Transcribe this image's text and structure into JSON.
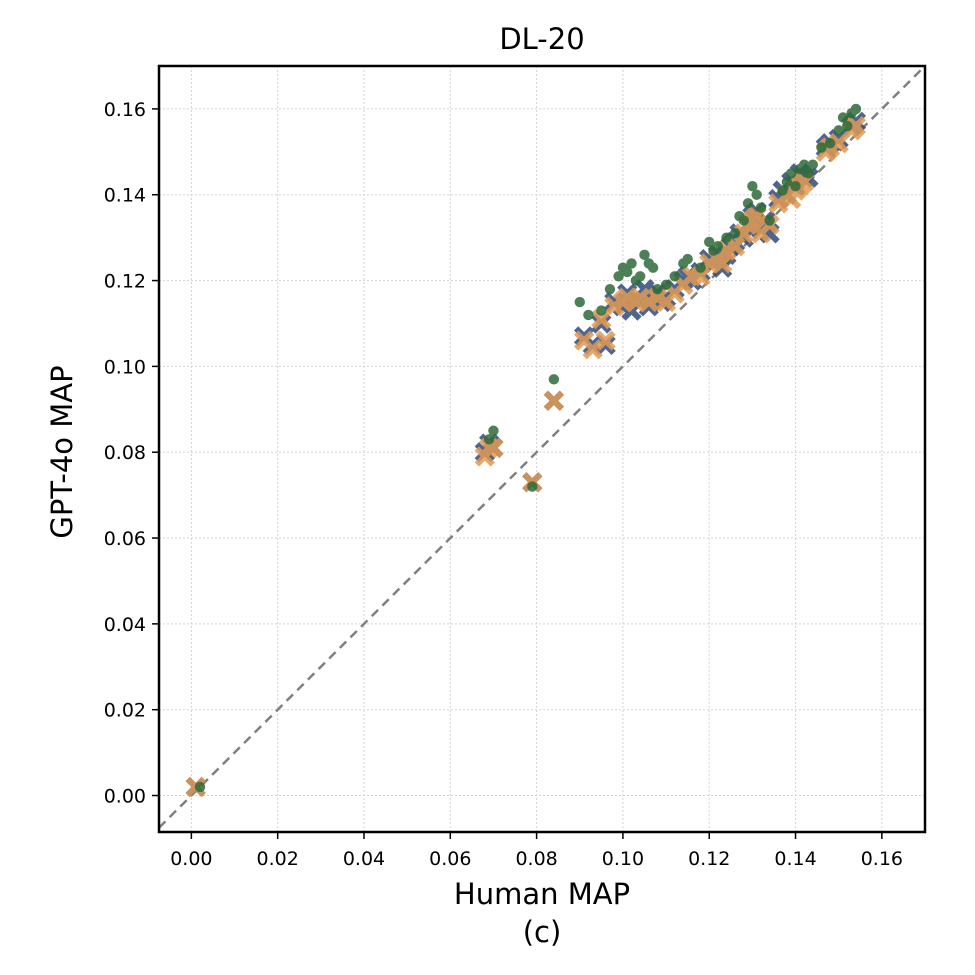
{
  "chart_data": {
    "type": "scatter",
    "title": "DL-20",
    "xlabel": "Human MAP",
    "ylabel": "GPT-4o MAP",
    "caption": "(c)",
    "xlim": [
      -0.0075,
      0.17
    ],
    "ylim": [
      -0.0085,
      0.17
    ],
    "xticks": [
      0.0,
      0.02,
      0.04,
      0.06,
      0.08,
      0.1,
      0.12,
      0.14,
      0.16
    ],
    "yticks": [
      0.0,
      0.02,
      0.04,
      0.06,
      0.08,
      0.1,
      0.12,
      0.14,
      0.16
    ],
    "tick_format_decimals": 2,
    "grid": true,
    "reference_line": {
      "type": "diagonal",
      "style": "dashed",
      "color": "#808080"
    },
    "series": [
      {
        "marker": "x-thick",
        "color": "#2f4b7c",
        "points": [
          [
            0.001,
            0.002
          ],
          [
            0.068,
            0.08
          ],
          [
            0.069,
            0.082
          ],
          [
            0.07,
            0.081
          ],
          [
            0.079,
            0.073
          ],
          [
            0.084,
            0.092
          ],
          [
            0.091,
            0.107
          ],
          [
            0.093,
            0.105
          ],
          [
            0.095,
            0.11
          ],
          [
            0.096,
            0.105
          ],
          [
            0.098,
            0.115
          ],
          [
            0.1,
            0.114
          ],
          [
            0.101,
            0.117
          ],
          [
            0.102,
            0.113
          ],
          [
            0.103,
            0.116
          ],
          [
            0.104,
            0.115
          ],
          [
            0.105,
            0.118
          ],
          [
            0.106,
            0.114
          ],
          [
            0.107,
            0.116
          ],
          [
            0.108,
            0.117
          ],
          [
            0.109,
            0.115
          ],
          [
            0.11,
            0.116
          ],
          [
            0.112,
            0.118
          ],
          [
            0.114,
            0.12
          ],
          [
            0.115,
            0.121
          ],
          [
            0.116,
            0.12
          ],
          [
            0.118,
            0.122
          ],
          [
            0.12,
            0.125
          ],
          [
            0.121,
            0.124
          ],
          [
            0.122,
            0.126
          ],
          [
            0.123,
            0.123
          ],
          [
            0.124,
            0.126
          ],
          [
            0.125,
            0.128
          ],
          [
            0.126,
            0.129
          ],
          [
            0.127,
            0.131
          ],
          [
            0.128,
            0.13
          ],
          [
            0.129,
            0.133
          ],
          [
            0.13,
            0.135
          ],
          [
            0.131,
            0.136
          ],
          [
            0.132,
            0.132
          ],
          [
            0.133,
            0.134
          ],
          [
            0.134,
            0.131
          ],
          [
            0.136,
            0.139
          ],
          [
            0.137,
            0.141
          ],
          [
            0.138,
            0.14
          ],
          [
            0.139,
            0.143
          ],
          [
            0.14,
            0.142
          ],
          [
            0.141,
            0.145
          ],
          [
            0.142,
            0.144
          ],
          [
            0.143,
            0.144
          ],
          [
            0.147,
            0.151
          ],
          [
            0.148,
            0.152
          ],
          [
            0.15,
            0.153
          ],
          [
            0.153,
            0.156
          ],
          [
            0.154,
            0.157
          ]
        ]
      },
      {
        "marker": "x-thick",
        "color": "#e29b52",
        "points": [
          [
            0.001,
            0.002
          ],
          [
            0.068,
            0.079
          ],
          [
            0.069,
            0.081
          ],
          [
            0.07,
            0.081
          ],
          [
            0.079,
            0.073
          ],
          [
            0.084,
            0.092
          ],
          [
            0.091,
            0.106
          ],
          [
            0.093,
            0.104
          ],
          [
            0.095,
            0.111
          ],
          [
            0.096,
            0.106
          ],
          [
            0.098,
            0.114
          ],
          [
            0.1,
            0.115
          ],
          [
            0.101,
            0.116
          ],
          [
            0.103,
            0.115
          ],
          [
            0.104,
            0.116
          ],
          [
            0.106,
            0.115
          ],
          [
            0.108,
            0.116
          ],
          [
            0.11,
            0.115
          ],
          [
            0.112,
            0.117
          ],
          [
            0.114,
            0.119
          ],
          [
            0.116,
            0.121
          ],
          [
            0.118,
            0.121
          ],
          [
            0.12,
            0.124
          ],
          [
            0.122,
            0.125
          ],
          [
            0.123,
            0.124
          ],
          [
            0.124,
            0.127
          ],
          [
            0.126,
            0.128
          ],
          [
            0.128,
            0.131
          ],
          [
            0.129,
            0.133
          ],
          [
            0.13,
            0.134
          ],
          [
            0.131,
            0.135
          ],
          [
            0.132,
            0.131
          ],
          [
            0.134,
            0.133
          ],
          [
            0.136,
            0.138
          ],
          [
            0.138,
            0.14
          ],
          [
            0.139,
            0.139
          ],
          [
            0.14,
            0.141
          ],
          [
            0.141,
            0.142
          ],
          [
            0.142,
            0.143
          ],
          [
            0.147,
            0.15
          ],
          [
            0.148,
            0.151
          ],
          [
            0.15,
            0.152
          ],
          [
            0.153,
            0.155
          ],
          [
            0.154,
            0.156
          ]
        ]
      },
      {
        "marker": "circle",
        "color": "#2e6b3a",
        "points": [
          [
            0.002,
            0.002
          ],
          [
            0.069,
            0.083
          ],
          [
            0.07,
            0.085
          ],
          [
            0.079,
            0.072
          ],
          [
            0.084,
            0.097
          ],
          [
            0.09,
            0.115
          ],
          [
            0.092,
            0.112
          ],
          [
            0.095,
            0.113
          ],
          [
            0.097,
            0.118
          ],
          [
            0.099,
            0.121
          ],
          [
            0.1,
            0.123
          ],
          [
            0.101,
            0.122
          ],
          [
            0.102,
            0.124
          ],
          [
            0.103,
            0.12
          ],
          [
            0.104,
            0.121
          ],
          [
            0.105,
            0.126
          ],
          [
            0.106,
            0.124
          ],
          [
            0.107,
            0.123
          ],
          [
            0.108,
            0.118
          ],
          [
            0.11,
            0.119
          ],
          [
            0.112,
            0.121
          ],
          [
            0.114,
            0.124
          ],
          [
            0.115,
            0.125
          ],
          [
            0.118,
            0.123
          ],
          [
            0.12,
            0.129
          ],
          [
            0.121,
            0.127
          ],
          [
            0.122,
            0.128
          ],
          [
            0.124,
            0.13
          ],
          [
            0.126,
            0.131
          ],
          [
            0.127,
            0.135
          ],
          [
            0.128,
            0.134
          ],
          [
            0.129,
            0.138
          ],
          [
            0.13,
            0.142
          ],
          [
            0.131,
            0.14
          ],
          [
            0.132,
            0.137
          ],
          [
            0.134,
            0.134
          ],
          [
            0.137,
            0.141
          ],
          [
            0.138,
            0.143
          ],
          [
            0.139,
            0.145
          ],
          [
            0.14,
            0.142
          ],
          [
            0.141,
            0.146
          ],
          [
            0.142,
            0.147
          ],
          [
            0.143,
            0.145
          ],
          [
            0.144,
            0.147
          ],
          [
            0.146,
            0.151
          ],
          [
            0.148,
            0.152
          ],
          [
            0.15,
            0.155
          ],
          [
            0.151,
            0.158
          ],
          [
            0.152,
            0.156
          ],
          [
            0.153,
            0.159
          ],
          [
            0.154,
            0.16
          ]
        ]
      }
    ]
  }
}
